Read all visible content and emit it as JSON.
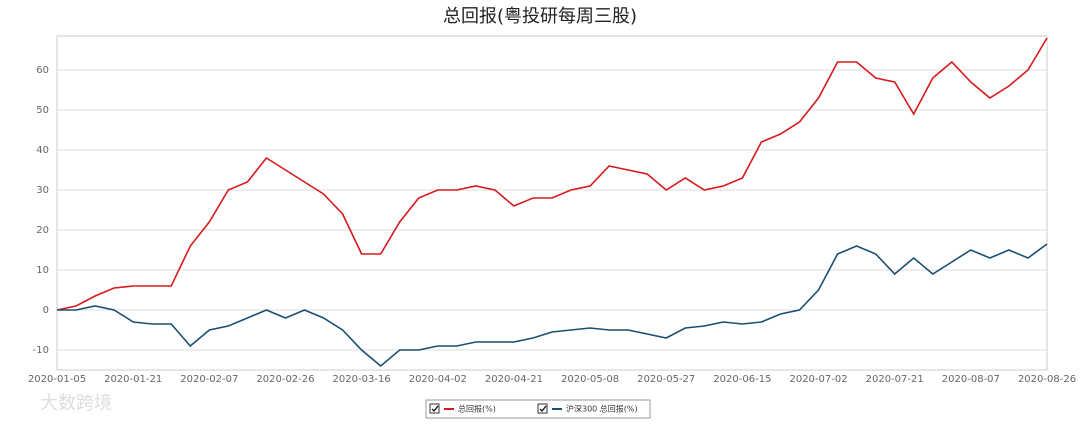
{
  "chart_data": {
    "type": "line",
    "title": "总回报(粤投研每周三股)",
    "categories": [
      "2020-01-05",
      null,
      null,
      null,
      "2020-01-21",
      null,
      null,
      null,
      "2020-02-07",
      null,
      null,
      null,
      "2020-02-26",
      null,
      null,
      null,
      "2020-03-16",
      null,
      null,
      null,
      "2020-04-02",
      null,
      null,
      null,
      "2020-04-21",
      null,
      null,
      null,
      "2020-05-08",
      null,
      null,
      null,
      "2020-05-27",
      null,
      null,
      null,
      "2020-06-15",
      null,
      null,
      null,
      "2020-07-02",
      null,
      null,
      null,
      "2020-07-21",
      null,
      null,
      null,
      "2020-08-07",
      null,
      null,
      null,
      "2020-08-26"
    ],
    "series": [
      {
        "name": "总回报(%)",
        "color": "#d7191c",
        "values": [
          0,
          1,
          3.5,
          5.5,
          6,
          6,
          6,
          16,
          22,
          30,
          32,
          38,
          35,
          32,
          29,
          24,
          14,
          14,
          22,
          28,
          30,
          30,
          31,
          30,
          26,
          28,
          28,
          30,
          31,
          36,
          35,
          34,
          30,
          33,
          30,
          31,
          33,
          42,
          44,
          47,
          53,
          62,
          62,
          58,
          57,
          49,
          58,
          62,
          57,
          53,
          56,
          60,
          68
        ]
      },
      {
        "name": "沪深300 总回报(%)",
        "color": "#1a4f72",
        "values": [
          0,
          0,
          1,
          0,
          -3,
          -3.5,
          -3.5,
          -9,
          -5,
          -4,
          -2,
          0,
          -2,
          0,
          -2,
          -5,
          -10,
          -14,
          -10,
          -10,
          -9,
          -9,
          -8,
          -8,
          -8,
          -7,
          -5.5,
          -5,
          -4.5,
          -5,
          -5,
          -6,
          -7,
          -4.5,
          -4,
          -3,
          -3.5,
          -3,
          -1,
          0,
          5,
          14,
          16,
          14,
          9,
          13,
          9,
          12,
          15,
          13,
          15,
          13,
          16.5
        ]
      }
    ],
    "ylim": [
      -15,
      68.5
    ],
    "yticks": [
      -10,
      0,
      10,
      20,
      30,
      40,
      50,
      60
    ],
    "grid": true,
    "legend": "bottom",
    "watermark": "大数跨境"
  }
}
